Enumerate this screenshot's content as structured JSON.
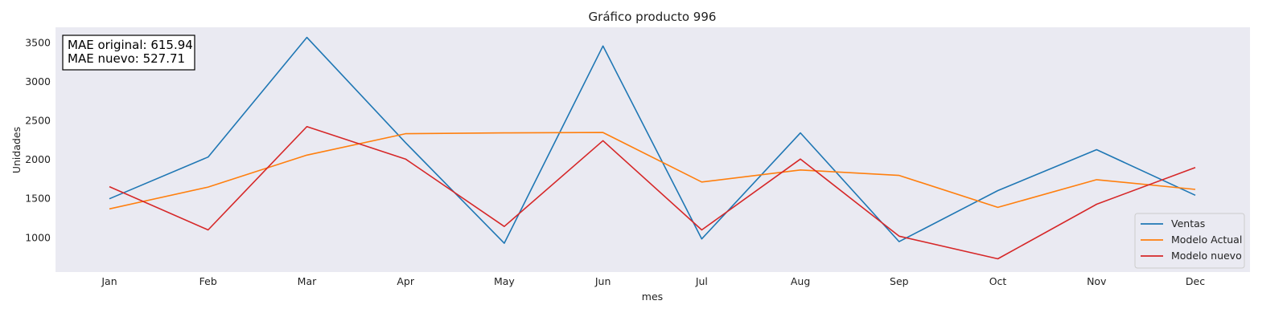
{
  "chart_data": {
    "type": "line",
    "title": "Gráfico producto 996",
    "xlabel": "mes",
    "ylabel": "Unidades",
    "categories": [
      "Jan",
      "Feb",
      "Mar",
      "Apr",
      "May",
      "Jun",
      "Jul",
      "Aug",
      "Sep",
      "Oct",
      "Nov",
      "Dec"
    ],
    "ylim": [
      560,
      3700
    ],
    "yticks": [
      1000,
      1500,
      2000,
      2500,
      3000,
      3500
    ],
    "grid": false,
    "legend_position": "lower-right",
    "series": [
      {
        "name": "Ventas",
        "color": "#1f77b4",
        "values": [
          1500,
          2035,
          3570,
          2220,
          930,
          3460,
          985,
          2345,
          950,
          1605,
          2130,
          1545
        ]
      },
      {
        "name": "Modelo Actual",
        "color": "#ff7f0e",
        "values": [
          1370,
          1650,
          2060,
          2335,
          2345,
          2350,
          1715,
          1870,
          1800,
          1390,
          1745,
          1620
        ]
      },
      {
        "name": "Modelo nuevo",
        "color": "#d62728",
        "values": [
          1655,
          1100,
          2425,
          2010,
          1145,
          2245,
          1100,
          2010,
          1020,
          730,
          1430,
          1900
        ]
      }
    ],
    "annotation": {
      "lines": [
        "MAE original: 615.94",
        "MAE nuevo: 527.71"
      ],
      "position": "top-left"
    }
  }
}
